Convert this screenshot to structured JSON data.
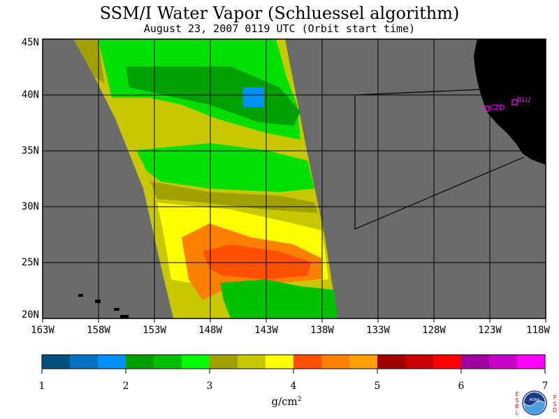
{
  "title": "SSM/I Water Vapor (Schluessel algorithm)",
  "subtitle": "August 23, 2007  0119 UTC  (Orbit start time)",
  "map": {
    "lat_labels": [
      "45N",
      "40N",
      "35N",
      "30N",
      "25N",
      "20N"
    ],
    "lon_labels": [
      "163W",
      "158W",
      "153W",
      "148W",
      "143W",
      "138W",
      "133W",
      "128W",
      "123W",
      "118W"
    ],
    "stations": [
      {
        "id": "CZD",
        "label": "CZD"
      },
      {
        "id": "BLU",
        "label": "BLU"
      }
    ],
    "colors": {
      "ocean_nodata": "#6b6b6b",
      "land": "#000000",
      "station": "#ff00ff"
    }
  },
  "colorbar": {
    "ticks": [
      "1",
      "2",
      "3",
      "4",
      "5",
      "6",
      "7"
    ],
    "units": "g/cm",
    "units_sup": "2",
    "colors": [
      "#005080",
      "#0070c0",
      "#0090ff",
      "#00a000",
      "#00c000",
      "#00ff00",
      "#a0a000",
      "#c8c800",
      "#ffff00",
      "#ff5000",
      "#ff8000",
      "#ffa000",
      "#a00000",
      "#c80000",
      "#ff0000",
      "#a000a0",
      "#c800c8",
      "#ff00ff"
    ]
  },
  "logo": {
    "left_letters": [
      "E",
      "S",
      "R",
      "L"
    ],
    "right_letters": [
      "P",
      "S",
      "D"
    ],
    "center_text": "NOAA"
  }
}
